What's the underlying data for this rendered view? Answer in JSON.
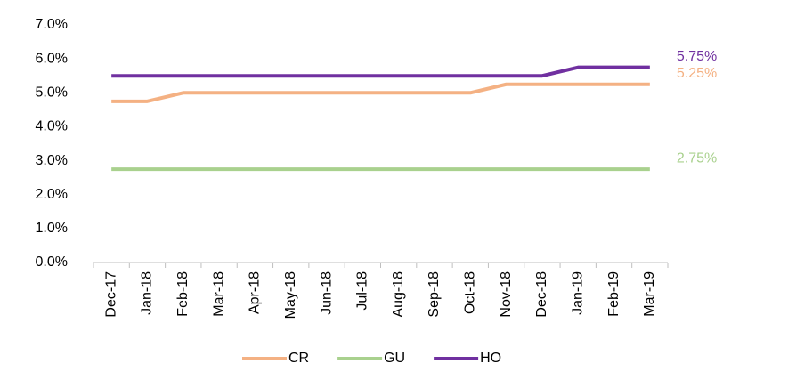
{
  "chart_data": {
    "type": "line",
    "categories": [
      "Dec-17",
      "Jan-18",
      "Feb-18",
      "Mar-18",
      "Apr-18",
      "May-18",
      "Jun-18",
      "Jul-18",
      "Aug-18",
      "Sep-18",
      "Oct-18",
      "Nov-18",
      "Dec-18",
      "Jan-19",
      "Feb-19",
      "Mar-19"
    ],
    "series": [
      {
        "name": "CR",
        "color": "#f4b183",
        "values": [
          4.75,
          4.75,
          5,
          5,
          5,
          5,
          5,
          5,
          5,
          5,
          5,
          5.25,
          5.25,
          5.25,
          5.25,
          5.25
        ],
        "value_labels": [
          null,
          null,
          null,
          null,
          null,
          null,
          null,
          null,
          null,
          null,
          null,
          null,
          null,
          null,
          null,
          "5.25%"
        ]
      },
      {
        "name": "GU",
        "color": "#a9d18e",
        "values": [
          2.75,
          2.75,
          2.75,
          2.75,
          2.75,
          2.75,
          2.75,
          2.75,
          2.75,
          2.75,
          2.75,
          2.75,
          2.75,
          2.75,
          2.75,
          2.75
        ],
        "value_labels": [
          null,
          null,
          null,
          null,
          null,
          null,
          null,
          null,
          null,
          null,
          null,
          null,
          null,
          null,
          null,
          "2.75%"
        ]
      },
      {
        "name": "HO",
        "color": "#7030a0",
        "values": [
          5.5,
          5.5,
          5.5,
          5.5,
          5.5,
          5.5,
          5.5,
          5.5,
          5.5,
          5.5,
          5.5,
          5.5,
          5.5,
          5.75,
          5.75,
          5.75
        ],
        "value_labels": [
          null,
          null,
          null,
          null,
          null,
          null,
          null,
          null,
          null,
          null,
          null,
          null,
          null,
          null,
          null,
          "5.75%"
        ]
      }
    ],
    "ylim": [
      0,
      7
    ],
    "yticks": [
      {
        "value": 0,
        "label": "0.0%"
      },
      {
        "value": 1,
        "label": "1.0%"
      },
      {
        "value": 2,
        "label": "2.0%"
      },
      {
        "value": 3,
        "label": "3.0%"
      },
      {
        "value": 4,
        "label": "4.0%"
      },
      {
        "value": 5,
        "label": "5.0%"
      },
      {
        "value": 6,
        "label": "6.0%"
      },
      {
        "value": 7,
        "label": "7.0%"
      }
    ],
    "grid": false,
    "legend": "bottom"
  }
}
